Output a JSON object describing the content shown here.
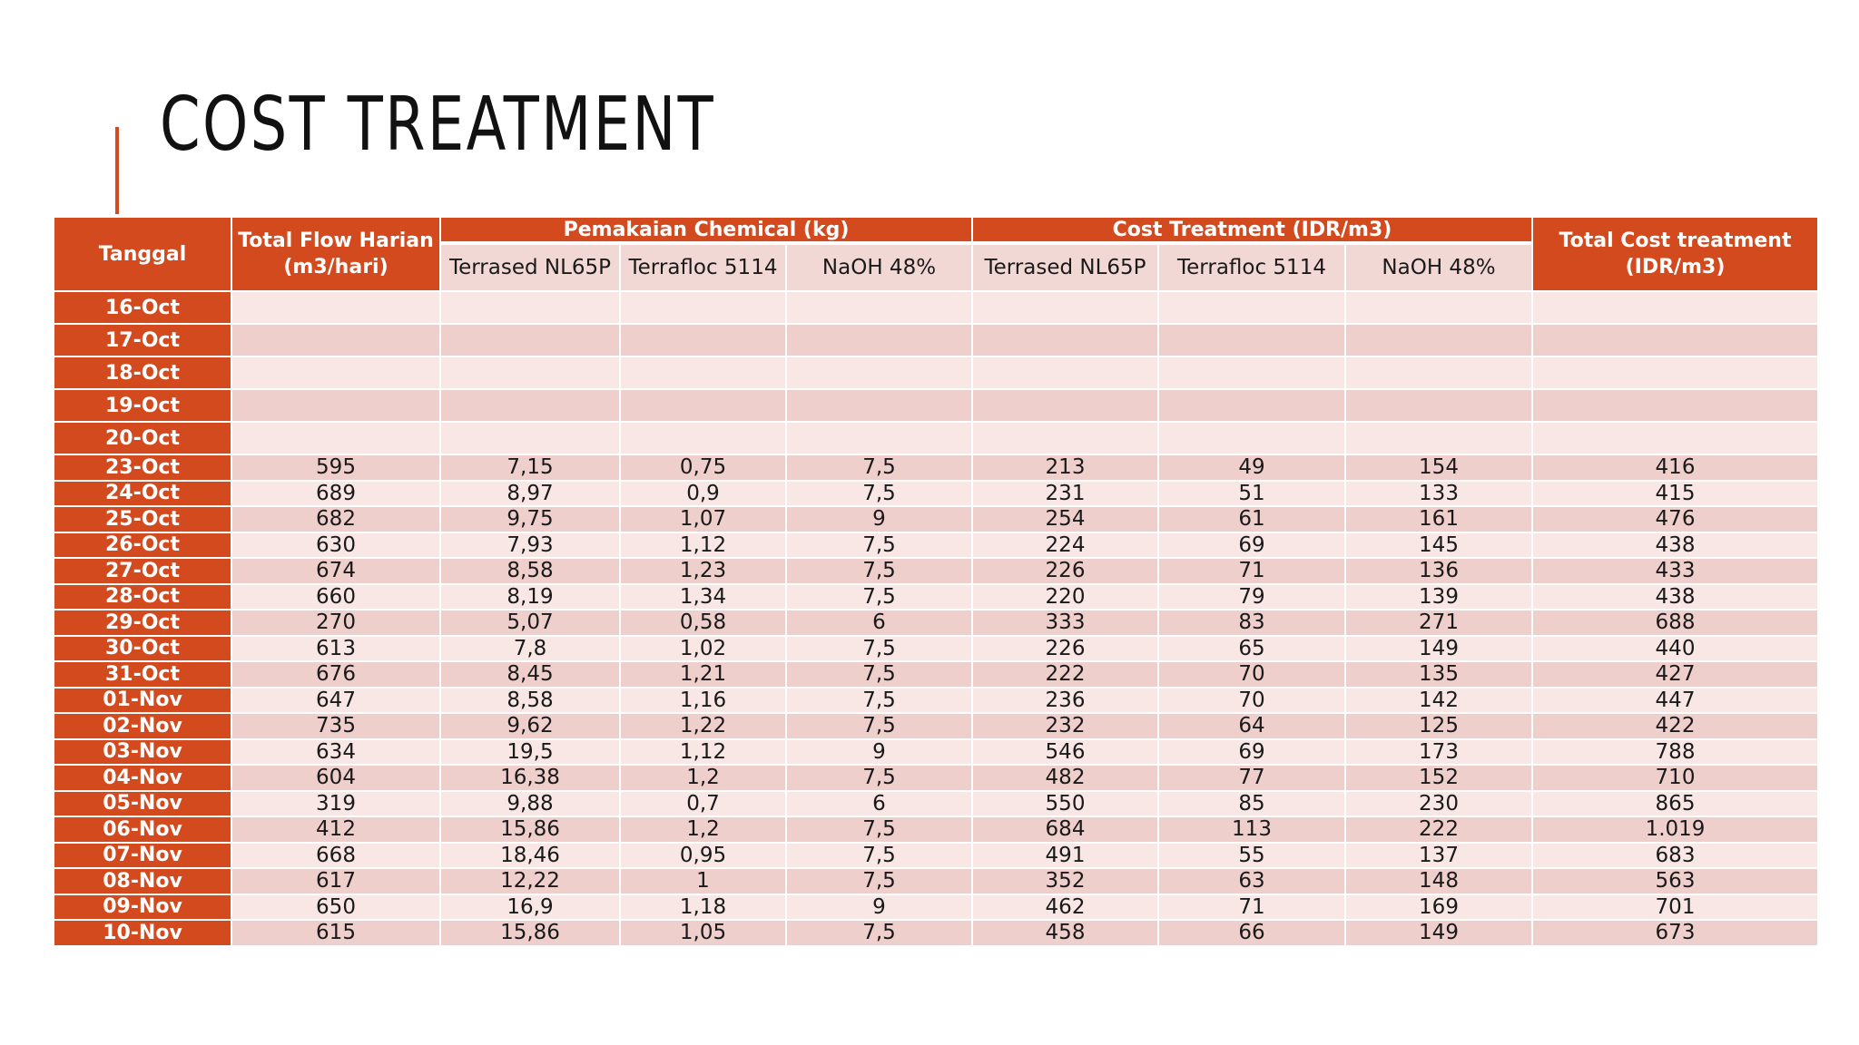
{
  "title": "COST TREATMENT",
  "colors": {
    "accent": "#d24a1e",
    "row_light": "#f8e7e5",
    "row_dark": "#efcfcb",
    "subheader_bg": "#f2d8d4"
  },
  "table": {
    "headers": {
      "tanggal": "Tanggal",
      "total_flow": "Total Flow Harian\n(m3/hari)",
      "chemical_group": "Pemakaian Chemical (kg)",
      "cost_group": "Cost Treatment (IDR/m3)",
      "total_cost": "Total Cost treatment\n(IDR/m3)",
      "sub": [
        "Terrased NL65P",
        "Terrafloc 5114",
        "NaOH 48%",
        "Terrased NL65P",
        "Terrafloc 5114",
        "NaOH 48%"
      ]
    },
    "rows": [
      {
        "date": "16-Oct",
        "values": [
          "",
          "",
          "",
          "",
          "",
          "",
          "",
          ""
        ]
      },
      {
        "date": "17-Oct",
        "values": [
          "",
          "",
          "",
          "",
          "",
          "",
          "",
          ""
        ]
      },
      {
        "date": "18-Oct",
        "values": [
          "",
          "",
          "",
          "",
          "",
          "",
          "",
          ""
        ]
      },
      {
        "date": "19-Oct",
        "values": [
          "",
          "",
          "",
          "",
          "",
          "",
          "",
          ""
        ]
      },
      {
        "date": "20-Oct",
        "values": [
          "",
          "",
          "",
          "",
          "",
          "",
          "",
          ""
        ]
      },
      {
        "date": "23-Oct",
        "values": [
          "595",
          "7,15",
          "0,75",
          "7,5",
          "213",
          "49",
          "154",
          "416"
        ]
      },
      {
        "date": "24-Oct",
        "values": [
          "689",
          "8,97",
          "0,9",
          "7,5",
          "231",
          "51",
          "133",
          "415"
        ]
      },
      {
        "date": "25-Oct",
        "values": [
          "682",
          "9,75",
          "1,07",
          "9",
          "254",
          "61",
          "161",
          "476"
        ]
      },
      {
        "date": "26-Oct",
        "values": [
          "630",
          "7,93",
          "1,12",
          "7,5",
          "224",
          "69",
          "145",
          "438"
        ]
      },
      {
        "date": "27-Oct",
        "values": [
          "674",
          "8,58",
          "1,23",
          "7,5",
          "226",
          "71",
          "136",
          "433"
        ]
      },
      {
        "date": "28-Oct",
        "values": [
          "660",
          "8,19",
          "1,34",
          "7,5",
          "220",
          "79",
          "139",
          "438"
        ]
      },
      {
        "date": "29-Oct",
        "values": [
          "270",
          "5,07",
          "0,58",
          "6",
          "333",
          "83",
          "271",
          "688"
        ]
      },
      {
        "date": "30-Oct",
        "values": [
          "613",
          "7,8",
          "1,02",
          "7,5",
          "226",
          "65",
          "149",
          "440"
        ]
      },
      {
        "date": "31-Oct",
        "values": [
          "676",
          "8,45",
          "1,21",
          "7,5",
          "222",
          "70",
          "135",
          "427"
        ]
      },
      {
        "date": "01-Nov",
        "values": [
          "647",
          "8,58",
          "1,16",
          "7,5",
          "236",
          "70",
          "142",
          "447"
        ]
      },
      {
        "date": "02-Nov",
        "values": [
          "735",
          "9,62",
          "1,22",
          "7,5",
          "232",
          "64",
          "125",
          "422"
        ]
      },
      {
        "date": "03-Nov",
        "values": [
          "634",
          "19,5",
          "1,12",
          "9",
          "546",
          "69",
          "173",
          "788"
        ]
      },
      {
        "date": "04-Nov",
        "values": [
          "604",
          "16,38",
          "1,2",
          "7,5",
          "482",
          "77",
          "152",
          "710"
        ]
      },
      {
        "date": "05-Nov",
        "values": [
          "319",
          "9,88",
          "0,7",
          "6",
          "550",
          "85",
          "230",
          "865"
        ]
      },
      {
        "date": "06-Nov",
        "values": [
          "412",
          "15,86",
          "1,2",
          "7,5",
          "684",
          "113",
          "222",
          "1.019"
        ]
      },
      {
        "date": "07-Nov",
        "values": [
          "668",
          "18,46",
          "0,95",
          "7,5",
          "491",
          "55",
          "137",
          "683"
        ]
      },
      {
        "date": "08-Nov",
        "values": [
          "617",
          "12,22",
          "1",
          "7,5",
          "352",
          "63",
          "148",
          "563"
        ]
      },
      {
        "date": "09-Nov",
        "values": [
          "650",
          "16,9",
          "1,18",
          "9",
          "462",
          "71",
          "169",
          "701"
        ]
      },
      {
        "date": "10-Nov",
        "values": [
          "615",
          "15,86",
          "1,05",
          "7,5",
          "458",
          "66",
          "149",
          "673"
        ]
      }
    ]
  }
}
